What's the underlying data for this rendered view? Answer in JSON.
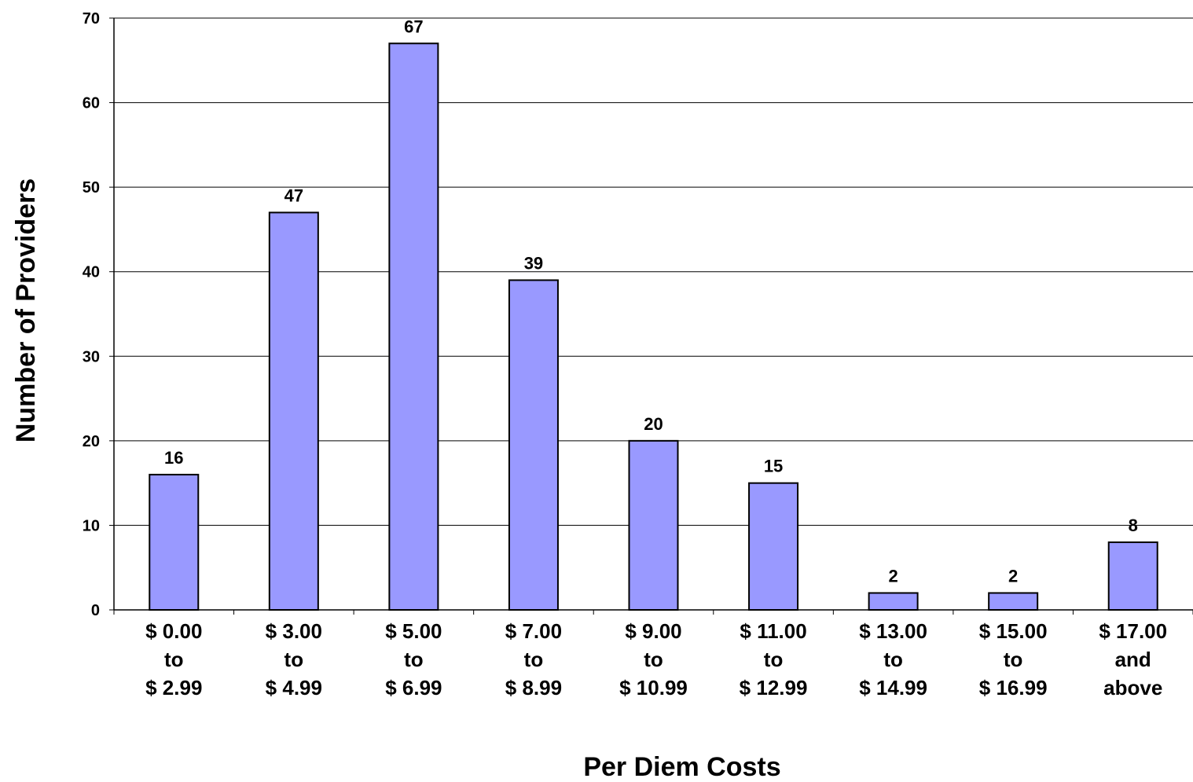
{
  "chart_data": {
    "type": "bar",
    "categories": [
      [
        "$ 0.00",
        "to",
        "$ 2.99"
      ],
      [
        "$ 3.00",
        "to",
        "$ 4.99"
      ],
      [
        "$ 5.00",
        "to",
        "$ 6.99"
      ],
      [
        "$ 7.00",
        "to",
        "$ 8.99"
      ],
      [
        "$ 9.00",
        "to",
        "$ 10.99"
      ],
      [
        "$ 11.00",
        "to",
        "$ 12.99"
      ],
      [
        "$ 13.00",
        "to",
        "$ 14.99"
      ],
      [
        "$ 15.00",
        "to",
        "$ 16.99"
      ],
      [
        "$ 17.00",
        "and",
        "above"
      ]
    ],
    "values": [
      16,
      47,
      67,
      39,
      20,
      15,
      2,
      2,
      8
    ],
    "title": "",
    "xlabel": "Per Diem Costs",
    "ylabel": "Number of Providers",
    "ylim": [
      0,
      70
    ],
    "yticks": [
      0,
      10,
      20,
      30,
      40,
      50,
      60,
      70
    ],
    "grid": true,
    "bar_color": "#9999ff",
    "data_labels": true
  }
}
